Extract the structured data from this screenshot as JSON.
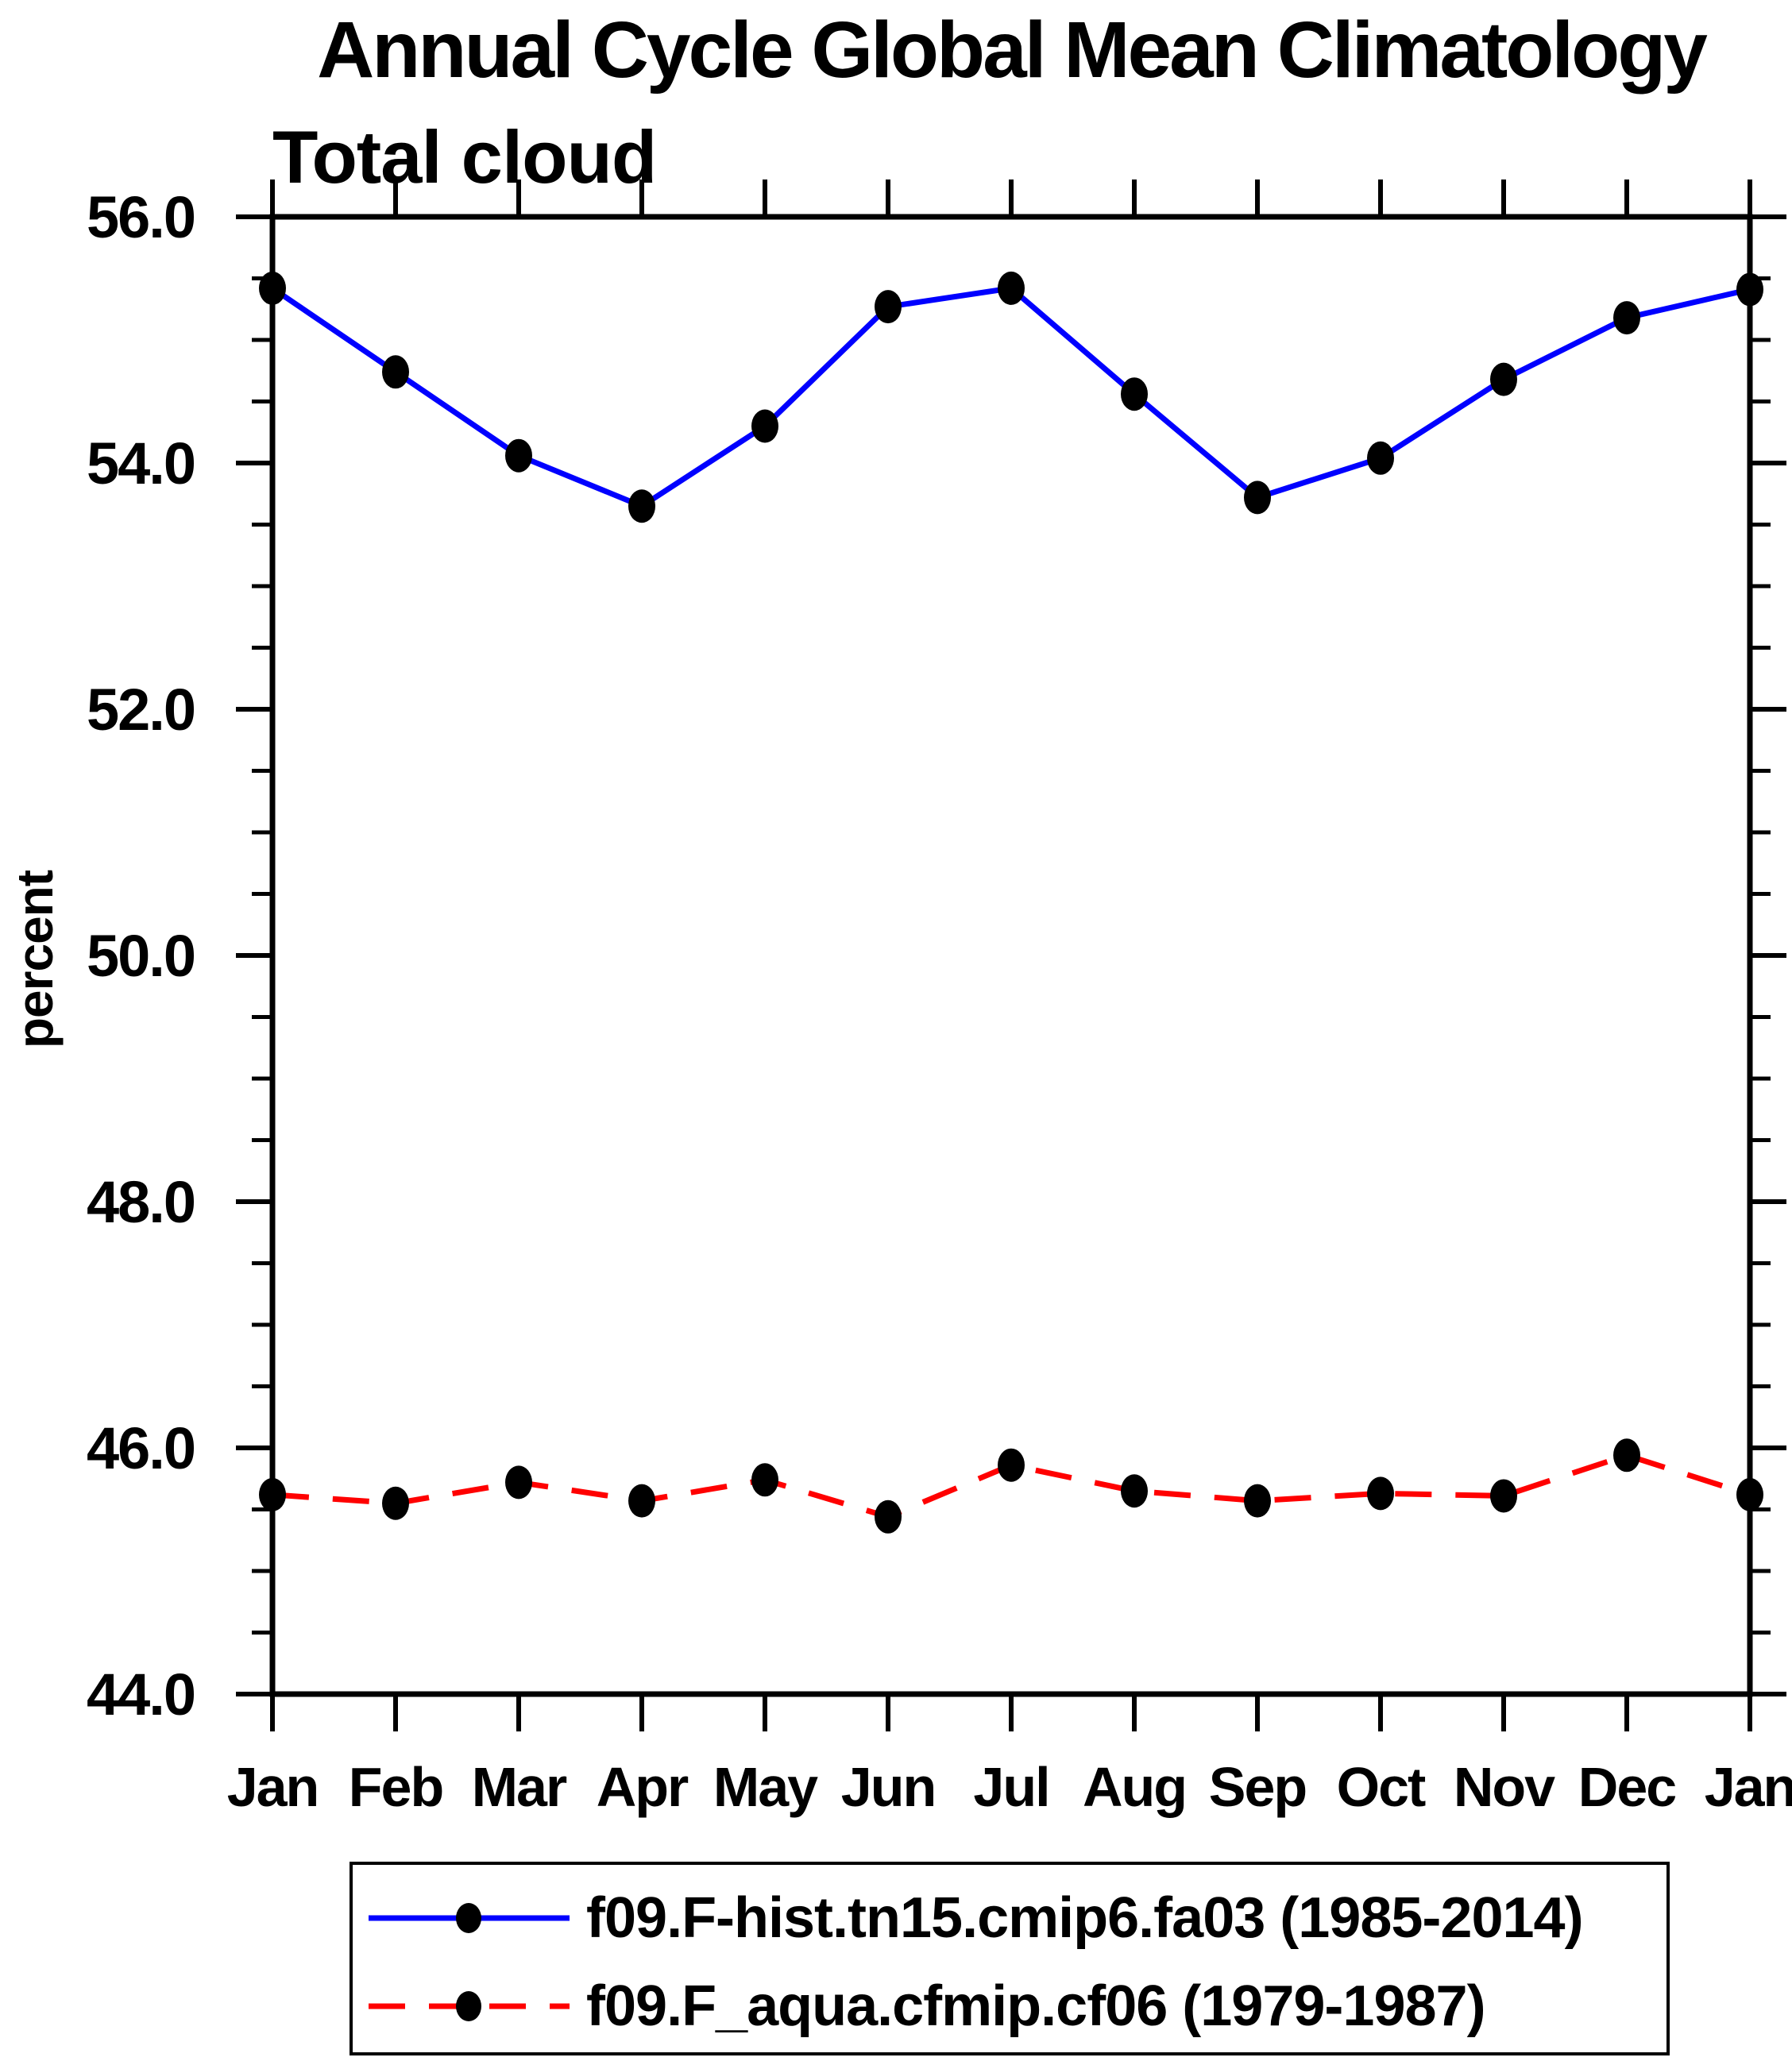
{
  "title": "Annual Cycle Global Mean Climatology",
  "subtitle": "Total cloud",
  "y_axis_title": "percent",
  "colors": {
    "background": "#ffffff",
    "axis": "#000000",
    "marker": "#000000",
    "series1": "#0000ff",
    "series2": "#ff0000"
  },
  "legend": {
    "entries": [
      "f09.F-hist.tn15.cmip6.fa03 (1985-2014)",
      "f09.F_aqua.cfmip.cf06 (1979-1987)"
    ]
  },
  "chart_data": {
    "type": "line",
    "title": "Annual Cycle Global Mean Climatology",
    "subtitle": "Total cloud",
    "xlabel": "",
    "ylabel": "percent",
    "categories": [
      "Jan",
      "Feb",
      "Mar",
      "Apr",
      "May",
      "Jun",
      "Jul",
      "Aug",
      "Sep",
      "Oct",
      "Nov",
      "Dec",
      "Jan"
    ],
    "ylim": [
      44.0,
      56.0
    ],
    "y_major_ticks": [
      44,
      46,
      48,
      50,
      52,
      54,
      56
    ],
    "y_tick_labels": [
      "44.0",
      "46.0",
      "48.0",
      "50.0",
      "52.0",
      "54.0",
      "56.0"
    ],
    "y_minor_step": 0.5,
    "grid": false,
    "legend_position": "bottom",
    "series": [
      {
        "name": "f09.F-hist.tn15.cmip6.fa03 (1985-2014)",
        "color": "#0000ff",
        "style": "solid",
        "marker": "circle",
        "values": [
          55.42,
          54.74,
          54.06,
          53.65,
          54.3,
          55.27,
          55.42,
          54.56,
          53.72,
          54.04,
          54.68,
          55.18,
          55.41
        ]
      },
      {
        "name": "f09.F_aqua.cfmip.cf06 (1979-1987)",
        "color": "#ff0000",
        "style": "dashed",
        "marker": "circle",
        "values": [
          45.62,
          45.55,
          45.72,
          45.57,
          45.74,
          45.44,
          45.86,
          45.65,
          45.57,
          45.63,
          45.61,
          45.94,
          45.62
        ]
      }
    ]
  }
}
